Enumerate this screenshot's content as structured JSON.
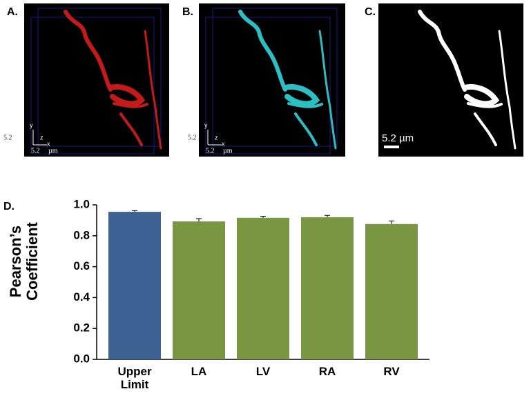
{
  "panels": [
    {
      "label": "A.",
      "axis_labels": [
        "y",
        "z",
        "x"
      ],
      "scale": [
        "5.2",
        "5.2",
        "µm"
      ]
    },
    {
      "label": "B.",
      "axis_labels": [
        "y",
        "z",
        "x"
      ],
      "scale": [
        "5.2",
        "5.2",
        "µm"
      ]
    },
    {
      "label": "C.",
      "scale_bar": "5.2 µm"
    }
  ],
  "chart_data": {
    "type": "bar",
    "panel_label": "D.",
    "ylabel": "Pearson’s Coefficient",
    "categories": [
      "Upper Limit",
      "LA",
      "LV",
      "RA",
      "RV"
    ],
    "values": [
      0.955,
      0.893,
      0.916,
      0.92,
      0.876
    ],
    "errors": [
      0.008,
      0.018,
      0.01,
      0.012,
      0.02
    ],
    "colors": [
      "#3d6193",
      "#7b9643",
      "#7b9643",
      "#7b9643",
      "#7b9643"
    ],
    "ylim": [
      0,
      1.0
    ],
    "yticks": [
      {
        "value": 0,
        "label": "0.0"
      },
      0.2,
      0.4,
      0.6,
      0.8,
      {
        "value": 1.0,
        "label": "1.0"
      }
    ]
  }
}
